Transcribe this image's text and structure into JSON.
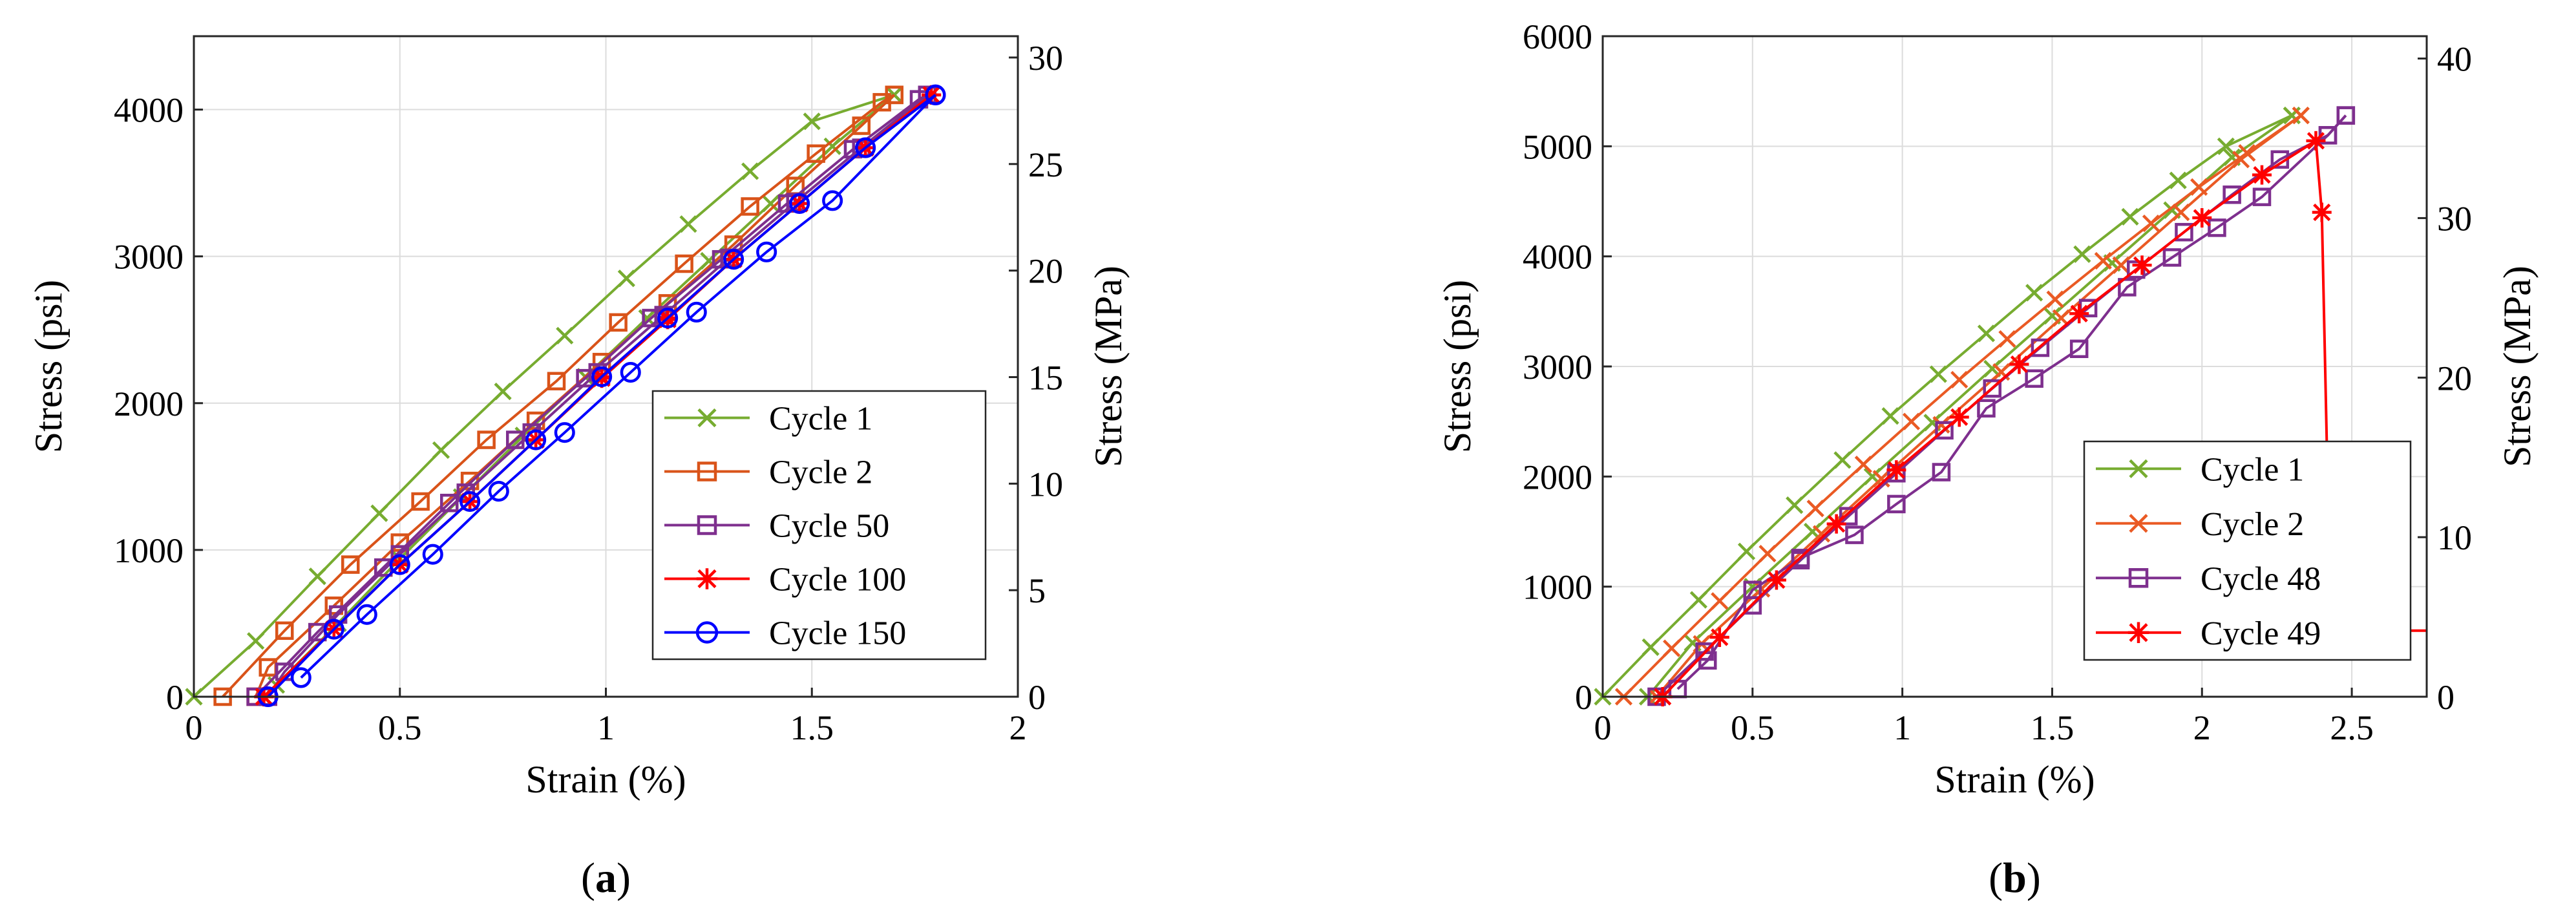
{
  "chart_data": [
    {
      "type": "line",
      "panel_label": "(a)",
      "xlabel": "Strain (%)",
      "ylabel": "Stress (psi)",
      "ylabel_right": "Stress (MPa)",
      "xlim": [
        0,
        2
      ],
      "ylim": [
        0,
        4500
      ],
      "y2lim": [
        0,
        31
      ],
      "xticks": [
        0,
        0.5,
        1,
        1.5,
        2
      ],
      "xtick_labels": [
        "0",
        "0.5",
        "1",
        "1.5",
        "2"
      ],
      "yticks": [
        0,
        1000,
        2000,
        3000,
        4000
      ],
      "ytick_labels": [
        "0",
        "1000",
        "2000",
        "3000",
        "4000"
      ],
      "y2ticks": [
        0,
        5,
        10,
        15,
        20,
        25,
        30
      ],
      "y2tick_labels": [
        "0",
        "5",
        "10",
        "15",
        "20",
        "25",
        "30"
      ],
      "grid": true,
      "legend_position": "lower-right",
      "series": [
        {
          "name": "Cycle 1",
          "color": "#77ac30",
          "marker": "x",
          "loading": [
            [
              0,
              0
            ],
            [
              0.15,
              380
            ],
            [
              0.3,
              820
            ],
            [
              0.45,
              1250
            ],
            [
              0.6,
              1680
            ],
            [
              0.75,
              2080
            ],
            [
              0.9,
              2460
            ],
            [
              1.05,
              2850
            ],
            [
              1.2,
              3220
            ],
            [
              1.35,
              3580
            ],
            [
              1.5,
              3920
            ],
            [
              1.7,
              4100
            ]
          ],
          "unloading": [
            [
              1.7,
              4100
            ],
            [
              1.55,
              3750
            ],
            [
              1.4,
              3360
            ],
            [
              1.25,
              2970
            ],
            [
              1.1,
              2580
            ],
            [
              0.95,
              2180
            ],
            [
              0.8,
              1780
            ],
            [
              0.65,
              1360
            ],
            [
              0.5,
              940
            ],
            [
              0.35,
              500
            ],
            [
              0.2,
              80
            ],
            [
              0.17,
              0
            ]
          ]
        },
        {
          "name": "Cycle 2",
          "color": "#d95319",
          "marker": "s",
          "loading": [
            [
              0.07,
              0
            ],
            [
              0.22,
              450
            ],
            [
              0.38,
              900
            ],
            [
              0.55,
              1330
            ],
            [
              0.71,
              1750
            ],
            [
              0.88,
              2150
            ],
            [
              1.03,
              2550
            ],
            [
              1.19,
              2950
            ],
            [
              1.35,
              3340
            ],
            [
              1.51,
              3700
            ],
            [
              1.67,
              4050
            ],
            [
              1.7,
              4100
            ]
          ],
          "unloading": [
            [
              1.7,
              4100
            ],
            [
              1.62,
              3890
            ],
            [
              1.46,
              3480
            ],
            [
              1.31,
              3080
            ],
            [
              1.15,
              2680
            ],
            [
              0.99,
              2280
            ],
            [
              0.83,
              1880
            ],
            [
              0.67,
              1470
            ],
            [
              0.5,
              1050
            ],
            [
              0.34,
              620
            ],
            [
              0.18,
              200
            ],
            [
              0.15,
              0
            ]
          ]
        },
        {
          "name": "Cycle 50",
          "color": "#7e2f8e",
          "marker": "s",
          "loading": [
            [
              0.15,
              0
            ],
            [
              0.3,
              440
            ],
            [
              0.46,
              880
            ],
            [
              0.62,
              1320
            ],
            [
              0.78,
              1750
            ],
            [
              0.95,
              2170
            ],
            [
              1.11,
              2580
            ],
            [
              1.28,
              2980
            ],
            [
              1.44,
              3360
            ],
            [
              1.6,
              3730
            ],
            [
              1.76,
              4070
            ],
            [
              1.78,
              4100
            ]
          ],
          "unloading": [
            [
              1.78,
              4100
            ],
            [
              1.62,
              3740
            ],
            [
              1.46,
              3370
            ],
            [
              1.3,
              2990
            ],
            [
              1.14,
              2600
            ],
            [
              0.98,
              2210
            ],
            [
              0.82,
              1800
            ],
            [
              0.66,
              1390
            ],
            [
              0.5,
              970
            ],
            [
              0.35,
              560
            ],
            [
              0.22,
              170
            ],
            [
              0.18,
              0
            ]
          ]
        },
        {
          "name": "Cycle 100",
          "color": "#ff0000",
          "marker": "*",
          "loading": [
            [
              0.17,
              0
            ],
            [
              0.34,
              460
            ],
            [
              0.5,
              900
            ],
            [
              0.67,
              1330
            ],
            [
              0.83,
              1750
            ],
            [
              0.99,
              2180
            ],
            [
              1.15,
              2580
            ],
            [
              1.31,
              2980
            ],
            [
              1.47,
              3360
            ],
            [
              1.63,
              3740
            ],
            [
              1.79,
              4100
            ]
          ],
          "unloading": [
            [
              1.79,
              4100
            ],
            [
              1.63,
              3740
            ],
            [
              1.47,
              3360
            ],
            [
              1.31,
              2980
            ],
            [
              1.15,
              2570
            ],
            [
              0.99,
              2170
            ],
            [
              0.83,
              1750
            ],
            [
              0.67,
              1330
            ],
            [
              0.5,
              900
            ],
            [
              0.34,
              460
            ],
            [
              0.17,
              0
            ]
          ]
        },
        {
          "name": "Cycle 150",
          "color": "#0000ff",
          "marker": "o",
          "loading": [
            [
              0.18,
              0
            ],
            [
              0.34,
              460
            ],
            [
              0.5,
              900
            ],
            [
              0.67,
              1330
            ],
            [
              0.83,
              1750
            ],
            [
              0.99,
              2180
            ],
            [
              1.15,
              2580
            ],
            [
              1.31,
              2980
            ],
            [
              1.47,
              3360
            ],
            [
              1.63,
              3740
            ],
            [
              1.8,
              4100
            ]
          ],
          "unloading": [
            [
              1.8,
              4100
            ],
            [
              1.55,
              3380
            ],
            [
              1.39,
              3030
            ],
            [
              1.22,
              2620
            ],
            [
              1.06,
              2210
            ],
            [
              0.9,
              1800
            ],
            [
              0.74,
              1400
            ],
            [
              0.58,
              970
            ],
            [
              0.42,
              560
            ],
            [
              0.26,
              130
            ]
          ]
        }
      ]
    },
    {
      "type": "line",
      "panel_label": "(b)",
      "xlabel": "Strain (%)",
      "ylabel": "Stress (psi)",
      "ylabel_right": "Stress (MPa)",
      "xlim": [
        0,
        2.75
      ],
      "ylim": [
        0,
        6000
      ],
      "y2lim": [
        0,
        41.4
      ],
      "xticks": [
        0,
        0.5,
        1,
        1.5,
        2,
        2.5
      ],
      "xtick_labels": [
        "0",
        "0.5",
        "1",
        "1.5",
        "2",
        "2.5"
      ],
      "yticks": [
        0,
        1000,
        2000,
        3000,
        4000,
        5000,
        6000
      ],
      "ytick_labels": [
        "0",
        "1000",
        "2000",
        "3000",
        "4000",
        "5000",
        "6000"
      ],
      "y2ticks": [
        0,
        10,
        20,
        30,
        40
      ],
      "y2tick_labels": [
        "0",
        "10",
        "20",
        "30",
        "40"
      ],
      "grid": true,
      "legend_position": "lower-right",
      "series": [
        {
          "name": "Cycle 1",
          "color": "#77ac30",
          "marker": "x",
          "loading": [
            [
              0,
              0
            ],
            [
              0.16,
              450
            ],
            [
              0.32,
              880
            ],
            [
              0.48,
              1320
            ],
            [
              0.64,
              1740
            ],
            [
              0.8,
              2150
            ],
            [
              0.96,
              2550
            ],
            [
              1.12,
              2930
            ],
            [
              1.28,
              3300
            ],
            [
              1.44,
              3670
            ],
            [
              1.6,
              4020
            ],
            [
              1.76,
              4360
            ],
            [
              1.92,
              4690
            ],
            [
              2.08,
              5000
            ],
            [
              2.3,
              5280
            ]
          ],
          "unloading": [
            [
              2.3,
              5280
            ],
            [
              2.1,
              4900
            ],
            [
              1.9,
              4420
            ],
            [
              1.7,
              3940
            ],
            [
              1.5,
              3460
            ],
            [
              1.3,
              2980
            ],
            [
              1.1,
              2490
            ],
            [
              0.9,
              2000
            ],
            [
              0.7,
              1500
            ],
            [
              0.5,
              1000
            ],
            [
              0.3,
              490
            ],
            [
              0.15,
              0
            ]
          ]
        },
        {
          "name": "Cycle 2",
          "color": "#ea5a24",
          "marker": "x",
          "loading": [
            [
              0.07,
              0
            ],
            [
              0.23,
              440
            ],
            [
              0.39,
              870
            ],
            [
              0.55,
              1300
            ],
            [
              0.71,
              1710
            ],
            [
              0.87,
              2110
            ],
            [
              1.03,
              2500
            ],
            [
              1.19,
              2880
            ],
            [
              1.35,
              3250
            ],
            [
              1.51,
              3610
            ],
            [
              1.67,
              3960
            ],
            [
              1.83,
              4300
            ],
            [
              1.99,
              4630
            ],
            [
              2.15,
              4940
            ],
            [
              2.33,
              5280
            ]
          ],
          "unloading": [
            [
              2.33,
              5280
            ],
            [
              2.13,
              4880
            ],
            [
              1.93,
              4400
            ],
            [
              1.73,
              3920
            ],
            [
              1.53,
              3440
            ],
            [
              1.33,
              2950
            ],
            [
              1.13,
              2470
            ],
            [
              0.93,
              1980
            ],
            [
              0.73,
              1480
            ],
            [
              0.53,
              980
            ],
            [
              0.33,
              480
            ],
            [
              0.18,
              0
            ]
          ]
        },
        {
          "name": "Cycle 48",
          "color": "#7e2f8e",
          "marker": "s",
          "loading": [
            [
              0.18,
              0
            ],
            [
              0.34,
              410
            ],
            [
              0.5,
              830
            ],
            [
              0.66,
              1240
            ],
            [
              0.82,
              1640
            ],
            [
              0.98,
              2030
            ],
            [
              1.14,
              2420
            ],
            [
              1.3,
              2800
            ],
            [
              1.46,
              3170
            ],
            [
              1.62,
              3530
            ],
            [
              1.78,
              3880
            ],
            [
              1.94,
              4220
            ],
            [
              2.1,
              4560
            ],
            [
              2.26,
              4880
            ],
            [
              2.42,
              5100
            ],
            [
              2.48,
              5280
            ]
          ],
          "unloading": [
            [
              2.48,
              5280
            ],
            [
              2.42,
              5100
            ],
            [
              2.2,
              4540
            ],
            [
              2.05,
              4260
            ],
            [
              1.9,
              3990
            ],
            [
              1.75,
              3720
            ],
            [
              1.59,
              3160
            ],
            [
              1.44,
              2890
            ],
            [
              1.28,
              2620
            ],
            [
              1.13,
              2040
            ],
            [
              0.98,
              1750
            ],
            [
              0.84,
              1470
            ],
            [
              0.66,
              1260
            ],
            [
              0.5,
              970
            ],
            [
              0.35,
              330
            ],
            [
              0.25,
              70
            ]
          ]
        },
        {
          "name": "Cycle 49",
          "color": "#ff0000",
          "marker": "*",
          "loading": [
            [
              0.2,
              0
            ],
            [
              0.39,
              540
            ],
            [
              0.58,
              1060
            ],
            [
              0.78,
              1570
            ],
            [
              0.98,
              2060
            ],
            [
              1.19,
              2540
            ],
            [
              1.39,
              3020
            ],
            [
              1.59,
              3480
            ],
            [
              1.8,
              3920
            ],
            [
              2.0,
              4350
            ],
            [
              2.2,
              4740
            ],
            [
              2.38,
              5050
            ]
          ],
          "failure": [
            [
              2.38,
              5050
            ],
            [
              2.4,
              4400
            ],
            [
              2.43,
              600
            ],
            [
              2.75,
              600
            ]
          ]
        }
      ]
    }
  ]
}
